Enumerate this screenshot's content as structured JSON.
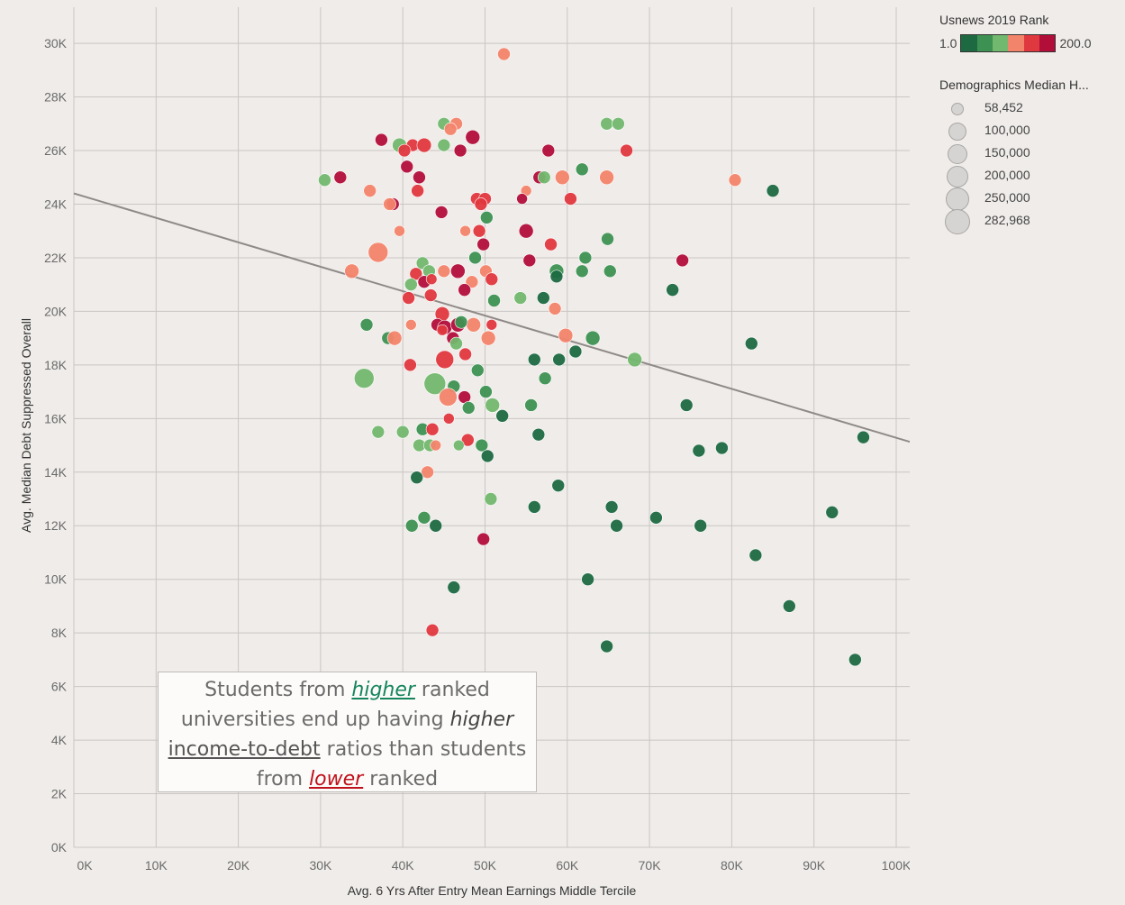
{
  "chart_data": {
    "type": "scatter",
    "xlabel": "Avg. 6 Yrs After Entry Mean Earnings Middle Tercile",
    "ylabel": "Avg. Median Debt Suppressed Overall",
    "xlim": [
      0,
      102000
    ],
    "ylim": [
      0,
      30600
    ],
    "x_ticks": [
      "0K",
      "10K",
      "20K",
      "30K",
      "40K",
      "50K",
      "60K",
      "70K",
      "80K",
      "90K",
      "100K"
    ],
    "y_ticks": [
      "0K",
      "2K",
      "4K",
      "6K",
      "8K",
      "10K",
      "12K",
      "14K",
      "16K",
      "18K",
      "20K",
      "22K",
      "24K",
      "26K",
      "28K",
      "30K"
    ],
    "grid": true,
    "trend_line": {
      "x": [
        0,
        102000
      ],
      "y": [
        24400,
        15100
      ]
    },
    "color_legend": {
      "title": "Usnews 2019 Rank",
      "min_label": "1.0",
      "max_label": "200.0",
      "colors": [
        "#1d6a42",
        "#3d9152",
        "#72b86e",
        "#f3846c",
        "#e0383f",
        "#b20e3a"
      ]
    },
    "size_legend": {
      "title": "Demographics Median H...",
      "values": [
        "58,452",
        "100,000",
        "150,000",
        "200,000",
        "250,000",
        "282,968"
      ]
    },
    "points": [
      [
        52300,
        29600,
        "#f3846c",
        7
      ],
      [
        64800,
        27000,
        "#72b86e",
        7
      ],
      [
        66200,
        27000,
        "#72b86e",
        7
      ],
      [
        45000,
        27000,
        "#72b86e",
        7
      ],
      [
        46500,
        27000,
        "#f3846c",
        7
      ],
      [
        45800,
        26800,
        "#f3846c",
        7
      ],
      [
        48500,
        26500,
        "#b20e3a",
        8
      ],
      [
        37400,
        26400,
        "#b20e3a",
        7
      ],
      [
        39600,
        26200,
        "#72b86e",
        8
      ],
      [
        41200,
        26200,
        "#e0383f",
        7
      ],
      [
        42600,
        26200,
        "#e0383f",
        8
      ],
      [
        45000,
        26200,
        "#72b86e",
        7
      ],
      [
        40200,
        26000,
        "#e0383f",
        7
      ],
      [
        47000,
        26000,
        "#b20e3a",
        7
      ],
      [
        57700,
        26000,
        "#b20e3a",
        7
      ],
      [
        67200,
        26000,
        "#e0383f",
        7
      ],
      [
        40500,
        25400,
        "#b20e3a",
        7
      ],
      [
        61800,
        25300,
        "#3d9152",
        7
      ],
      [
        32400,
        25000,
        "#b20e3a",
        7
      ],
      [
        42000,
        25000,
        "#b20e3a",
        7
      ],
      [
        56600,
        25000,
        "#b20e3a",
        7
      ],
      [
        57200,
        25000,
        "#72b86e",
        7
      ],
      [
        59400,
        25000,
        "#f3846c",
        8
      ],
      [
        64800,
        25000,
        "#f3846c",
        8
      ],
      [
        30500,
        24900,
        "#72b86e",
        7
      ],
      [
        80400,
        24900,
        "#f3846c",
        7
      ],
      [
        85000,
        24500,
        "#1d6a42",
        7
      ],
      [
        36000,
        24500,
        "#f3846c",
        7
      ],
      [
        41800,
        24500,
        "#e0383f",
        7
      ],
      [
        55000,
        24500,
        "#f3846c",
        6
      ],
      [
        49000,
        24200,
        "#e0383f",
        7
      ],
      [
        50000,
        24200,
        "#e0383f",
        7
      ],
      [
        54500,
        24200,
        "#b20e3a",
        6
      ],
      [
        60400,
        24200,
        "#e0383f",
        7
      ],
      [
        38800,
        24000,
        "#b20e3a",
        7
      ],
      [
        38400,
        24000,
        "#f3846c",
        7
      ],
      [
        49500,
        24000,
        "#e0383f",
        7
      ],
      [
        44700,
        23700,
        "#b20e3a",
        7
      ],
      [
        50200,
        23500,
        "#3d9152",
        7
      ],
      [
        39600,
        23000,
        "#f3846c",
        6
      ],
      [
        47600,
        23000,
        "#f3846c",
        6
      ],
      [
        49300,
        23000,
        "#e0383f",
        7
      ],
      [
        55000,
        23000,
        "#b20e3a",
        8
      ],
      [
        64900,
        22700,
        "#3d9152",
        7
      ],
      [
        49800,
        22500,
        "#b20e3a",
        7
      ],
      [
        58000,
        22500,
        "#e0383f",
        7
      ],
      [
        37000,
        22200,
        "#f3846c",
        11
      ],
      [
        48800,
        22000,
        "#3d9152",
        7
      ],
      [
        62200,
        22000,
        "#3d9152",
        7
      ],
      [
        55400,
        21900,
        "#b20e3a",
        7
      ],
      [
        74000,
        21900,
        "#b20e3a",
        7
      ],
      [
        42400,
        21800,
        "#72b86e",
        7
      ],
      [
        33800,
        21500,
        "#f3846c",
        8
      ],
      [
        41600,
        21400,
        "#e0383f",
        7
      ],
      [
        43200,
        21500,
        "#72b86e",
        7
      ],
      [
        45000,
        21500,
        "#f3846c",
        7
      ],
      [
        46700,
        21500,
        "#b20e3a",
        8
      ],
      [
        50100,
        21500,
        "#f3846c",
        7
      ],
      [
        58700,
        21500,
        "#3d9152",
        8
      ],
      [
        61800,
        21500,
        "#3d9152",
        7
      ],
      [
        65200,
        21500,
        "#3d9152",
        7
      ],
      [
        42600,
        21100,
        "#b20e3a",
        7
      ],
      [
        43500,
        21200,
        "#e0383f",
        6
      ],
      [
        48400,
        21100,
        "#f3846c",
        7
      ],
      [
        50800,
        21200,
        "#e0383f",
        7
      ],
      [
        58700,
        21300,
        "#1d6a42",
        7
      ],
      [
        41000,
        21000,
        "#72b86e",
        7
      ],
      [
        47500,
        20800,
        "#b20e3a",
        7
      ],
      [
        72800,
        20800,
        "#1d6a42",
        7
      ],
      [
        43400,
        20600,
        "#e0383f",
        7
      ],
      [
        40700,
        20500,
        "#e0383f",
        7
      ],
      [
        54300,
        20500,
        "#72b86e",
        7
      ],
      [
        57100,
        20500,
        "#1d6a42",
        7
      ],
      [
        51100,
        20400,
        "#3d9152",
        7
      ],
      [
        58500,
        20100,
        "#f3846c",
        7
      ],
      [
        44800,
        19900,
        "#e0383f",
        8
      ],
      [
        35600,
        19500,
        "#3d9152",
        7
      ],
      [
        41000,
        19500,
        "#f3846c",
        6
      ],
      [
        44200,
        19500,
        "#b20e3a",
        7
      ],
      [
        45100,
        19400,
        "#b20e3a",
        8
      ],
      [
        46700,
        19500,
        "#b20e3a",
        8
      ],
      [
        48600,
        19500,
        "#f3846c",
        8
      ],
      [
        50800,
        19500,
        "#e0383f",
        6
      ],
      [
        47100,
        19600,
        "#3d9152",
        7
      ],
      [
        44800,
        19300,
        "#e0383f",
        6
      ],
      [
        59800,
        19100,
        "#f3846c",
        8
      ],
      [
        38200,
        19000,
        "#3d9152",
        7
      ],
      [
        39000,
        19000,
        "#f3846c",
        8
      ],
      [
        46100,
        19000,
        "#b20e3a",
        7
      ],
      [
        50400,
        19000,
        "#f3846c",
        8
      ],
      [
        63100,
        19000,
        "#3d9152",
        8
      ],
      [
        46500,
        18800,
        "#72b86e",
        7
      ],
      [
        82400,
        18800,
        "#1d6a42",
        7
      ],
      [
        61000,
        18500,
        "#1d6a42",
        7
      ],
      [
        47600,
        18400,
        "#e0383f",
        7
      ],
      [
        68200,
        18200,
        "#72b86e",
        8
      ],
      [
        45100,
        18200,
        "#e0383f",
        10
      ],
      [
        56000,
        18200,
        "#1d6a42",
        7
      ],
      [
        59000,
        18200,
        "#1d6a42",
        7
      ],
      [
        40900,
        18000,
        "#e0383f",
        7
      ],
      [
        49100,
        17800,
        "#3d9152",
        7
      ],
      [
        35300,
        17500,
        "#72b86e",
        11
      ],
      [
        57300,
        17500,
        "#3d9152",
        7
      ],
      [
        43900,
        17300,
        "#72b86e",
        12
      ],
      [
        46200,
        17200,
        "#3d9152",
        7
      ],
      [
        45500,
        16800,
        "#f3846c",
        10
      ],
      [
        47500,
        16800,
        "#b20e3a",
        7
      ],
      [
        50100,
        17000,
        "#3d9152",
        7
      ],
      [
        74500,
        16500,
        "#1d6a42",
        7
      ],
      [
        48000,
        16400,
        "#3d9152",
        7
      ],
      [
        50900,
        16500,
        "#72b86e",
        8
      ],
      [
        55600,
        16500,
        "#3d9152",
        7
      ],
      [
        52100,
        16100,
        "#1d6a42",
        7
      ],
      [
        45600,
        16000,
        "#e0383f",
        6
      ],
      [
        37000,
        15500,
        "#72b86e",
        7
      ],
      [
        40000,
        15500,
        "#72b86e",
        7
      ],
      [
        42400,
        15600,
        "#3d9152",
        7
      ],
      [
        43600,
        15600,
        "#e0383f",
        7
      ],
      [
        56500,
        15400,
        "#1d6a42",
        7
      ],
      [
        96000,
        15300,
        "#1d6a42",
        7
      ],
      [
        47900,
        15200,
        "#e0383f",
        7
      ],
      [
        42000,
        15000,
        "#72b86e",
        7
      ],
      [
        43300,
        15000,
        "#72b86e",
        7
      ],
      [
        44000,
        15000,
        "#f3846c",
        6
      ],
      [
        46800,
        15000,
        "#72b86e",
        6
      ],
      [
        49600,
        15000,
        "#3d9152",
        7
      ],
      [
        78800,
        14900,
        "#1d6a42",
        7
      ],
      [
        76000,
        14800,
        "#1d6a42",
        7
      ],
      [
        50300,
        14600,
        "#1d6a42",
        7
      ],
      [
        43000,
        14000,
        "#f3846c",
        7
      ],
      [
        41700,
        13800,
        "#1d6a42",
        7
      ],
      [
        58900,
        13500,
        "#1d6a42",
        7
      ],
      [
        50700,
        13000,
        "#72b86e",
        7
      ],
      [
        56000,
        12700,
        "#1d6a42",
        7
      ],
      [
        65400,
        12700,
        "#1d6a42",
        7
      ],
      [
        92200,
        12500,
        "#1d6a42",
        7
      ],
      [
        42600,
        12300,
        "#3d9152",
        7
      ],
      [
        70800,
        12300,
        "#1d6a42",
        7
      ],
      [
        41100,
        12000,
        "#3d9152",
        7
      ],
      [
        44000,
        12000,
        "#1d6a42",
        7
      ],
      [
        66000,
        12000,
        "#1d6a42",
        7
      ],
      [
        76200,
        12000,
        "#1d6a42",
        7
      ],
      [
        49800,
        11500,
        "#b20e3a",
        7
      ],
      [
        82900,
        10900,
        "#1d6a42",
        7
      ],
      [
        62500,
        10000,
        "#1d6a42",
        7
      ],
      [
        46200,
        9700,
        "#1d6a42",
        7
      ],
      [
        87000,
        9000,
        "#1d6a42",
        7
      ],
      [
        43600,
        8100,
        "#e0383f",
        7
      ],
      [
        64800,
        7500,
        "#1d6a42",
        7
      ],
      [
        95000,
        7000,
        "#1d6a42",
        7
      ]
    ]
  },
  "annotation": {
    "p1": "Students from ",
    "w_higher": "higher",
    "p2": " ranked universities end up having ",
    "w_higher2": "higher",
    "p3": " ",
    "w_ratio": "income-to-debt",
    "p4": " ratios than students from ",
    "w_lower": "lower",
    "p5": " ranked"
  }
}
